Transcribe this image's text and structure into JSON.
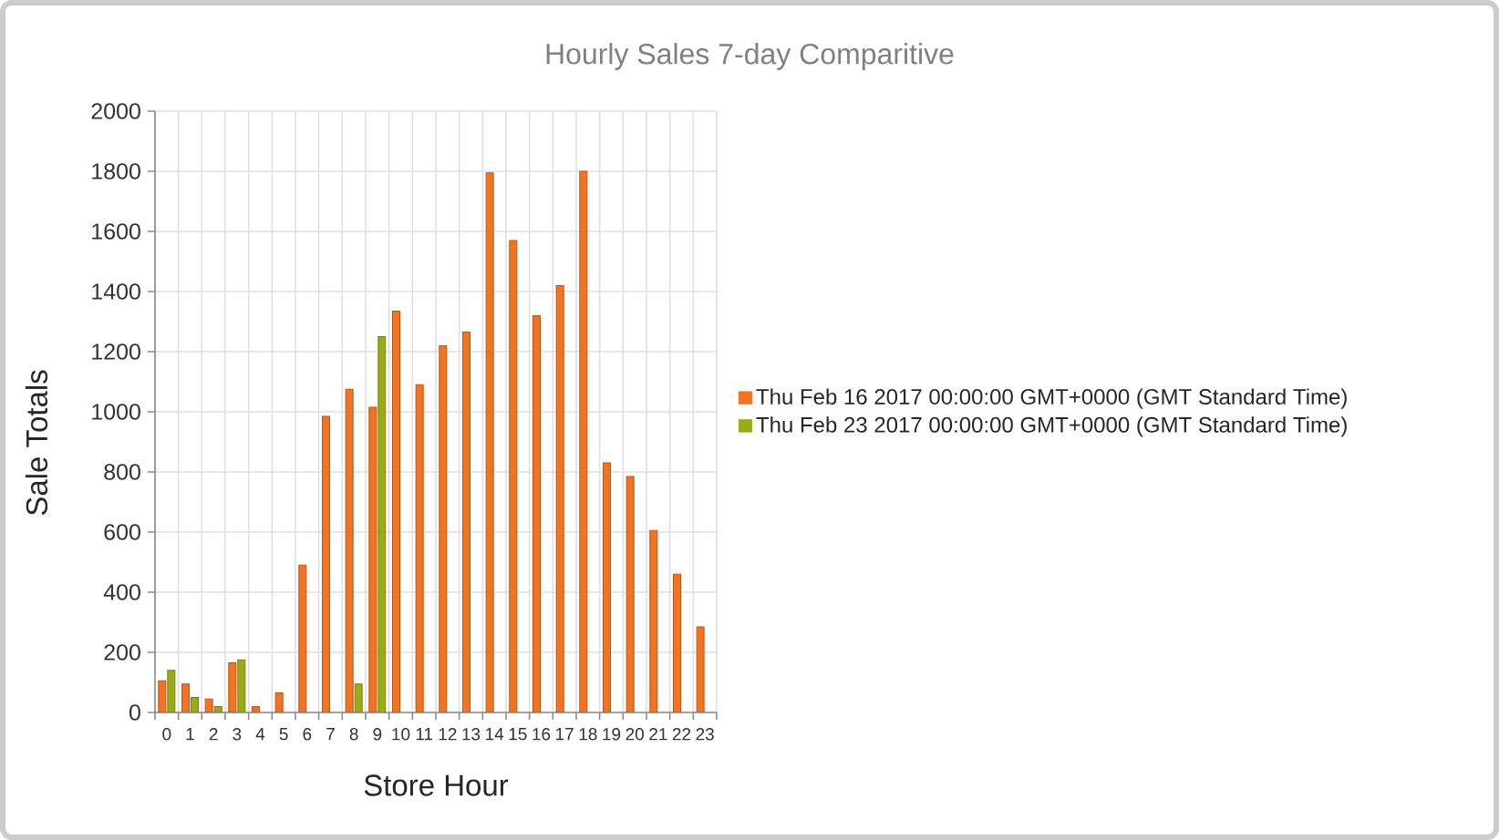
{
  "chart_data": {
    "type": "bar",
    "title": "Hourly Sales 7-day Comparitive",
    "xlabel": "Store Hour",
    "ylabel": "Sale Totals",
    "categories": [
      "0",
      "1",
      "2",
      "3",
      "4",
      "5",
      "6",
      "7",
      "8",
      "9",
      "10",
      "11",
      "12",
      "13",
      "14",
      "15",
      "16",
      "17",
      "18",
      "19",
      "20",
      "21",
      "22",
      "23"
    ],
    "series": [
      {
        "name": "Thu Feb 16 2017 00:00:00 GMT+0000 (GMT Standard Time)",
        "color": "#f47321",
        "values": [
          105,
          95,
          45,
          165,
          20,
          65,
          490,
          985,
          1075,
          1015,
          1335,
          1090,
          1220,
          1265,
          1795,
          1570,
          1320,
          1420,
          1800,
          830,
          785,
          605,
          460,
          285
        ]
      },
      {
        "name": "Thu Feb 23 2017 00:00:00 GMT+0000 (GMT Standard Time)",
        "color": "#9aab17",
        "values": [
          140,
          50,
          20,
          175,
          null,
          null,
          null,
          null,
          95,
          1250,
          null,
          null,
          null,
          null,
          null,
          null,
          null,
          null,
          null,
          null,
          null,
          null,
          null,
          null
        ]
      }
    ],
    "ylim": [
      0,
      2000
    ],
    "yticks": [
      0,
      200,
      400,
      600,
      800,
      1000,
      1200,
      1400,
      1600,
      1800,
      2000
    ],
    "grid": true,
    "legend": "right"
  }
}
